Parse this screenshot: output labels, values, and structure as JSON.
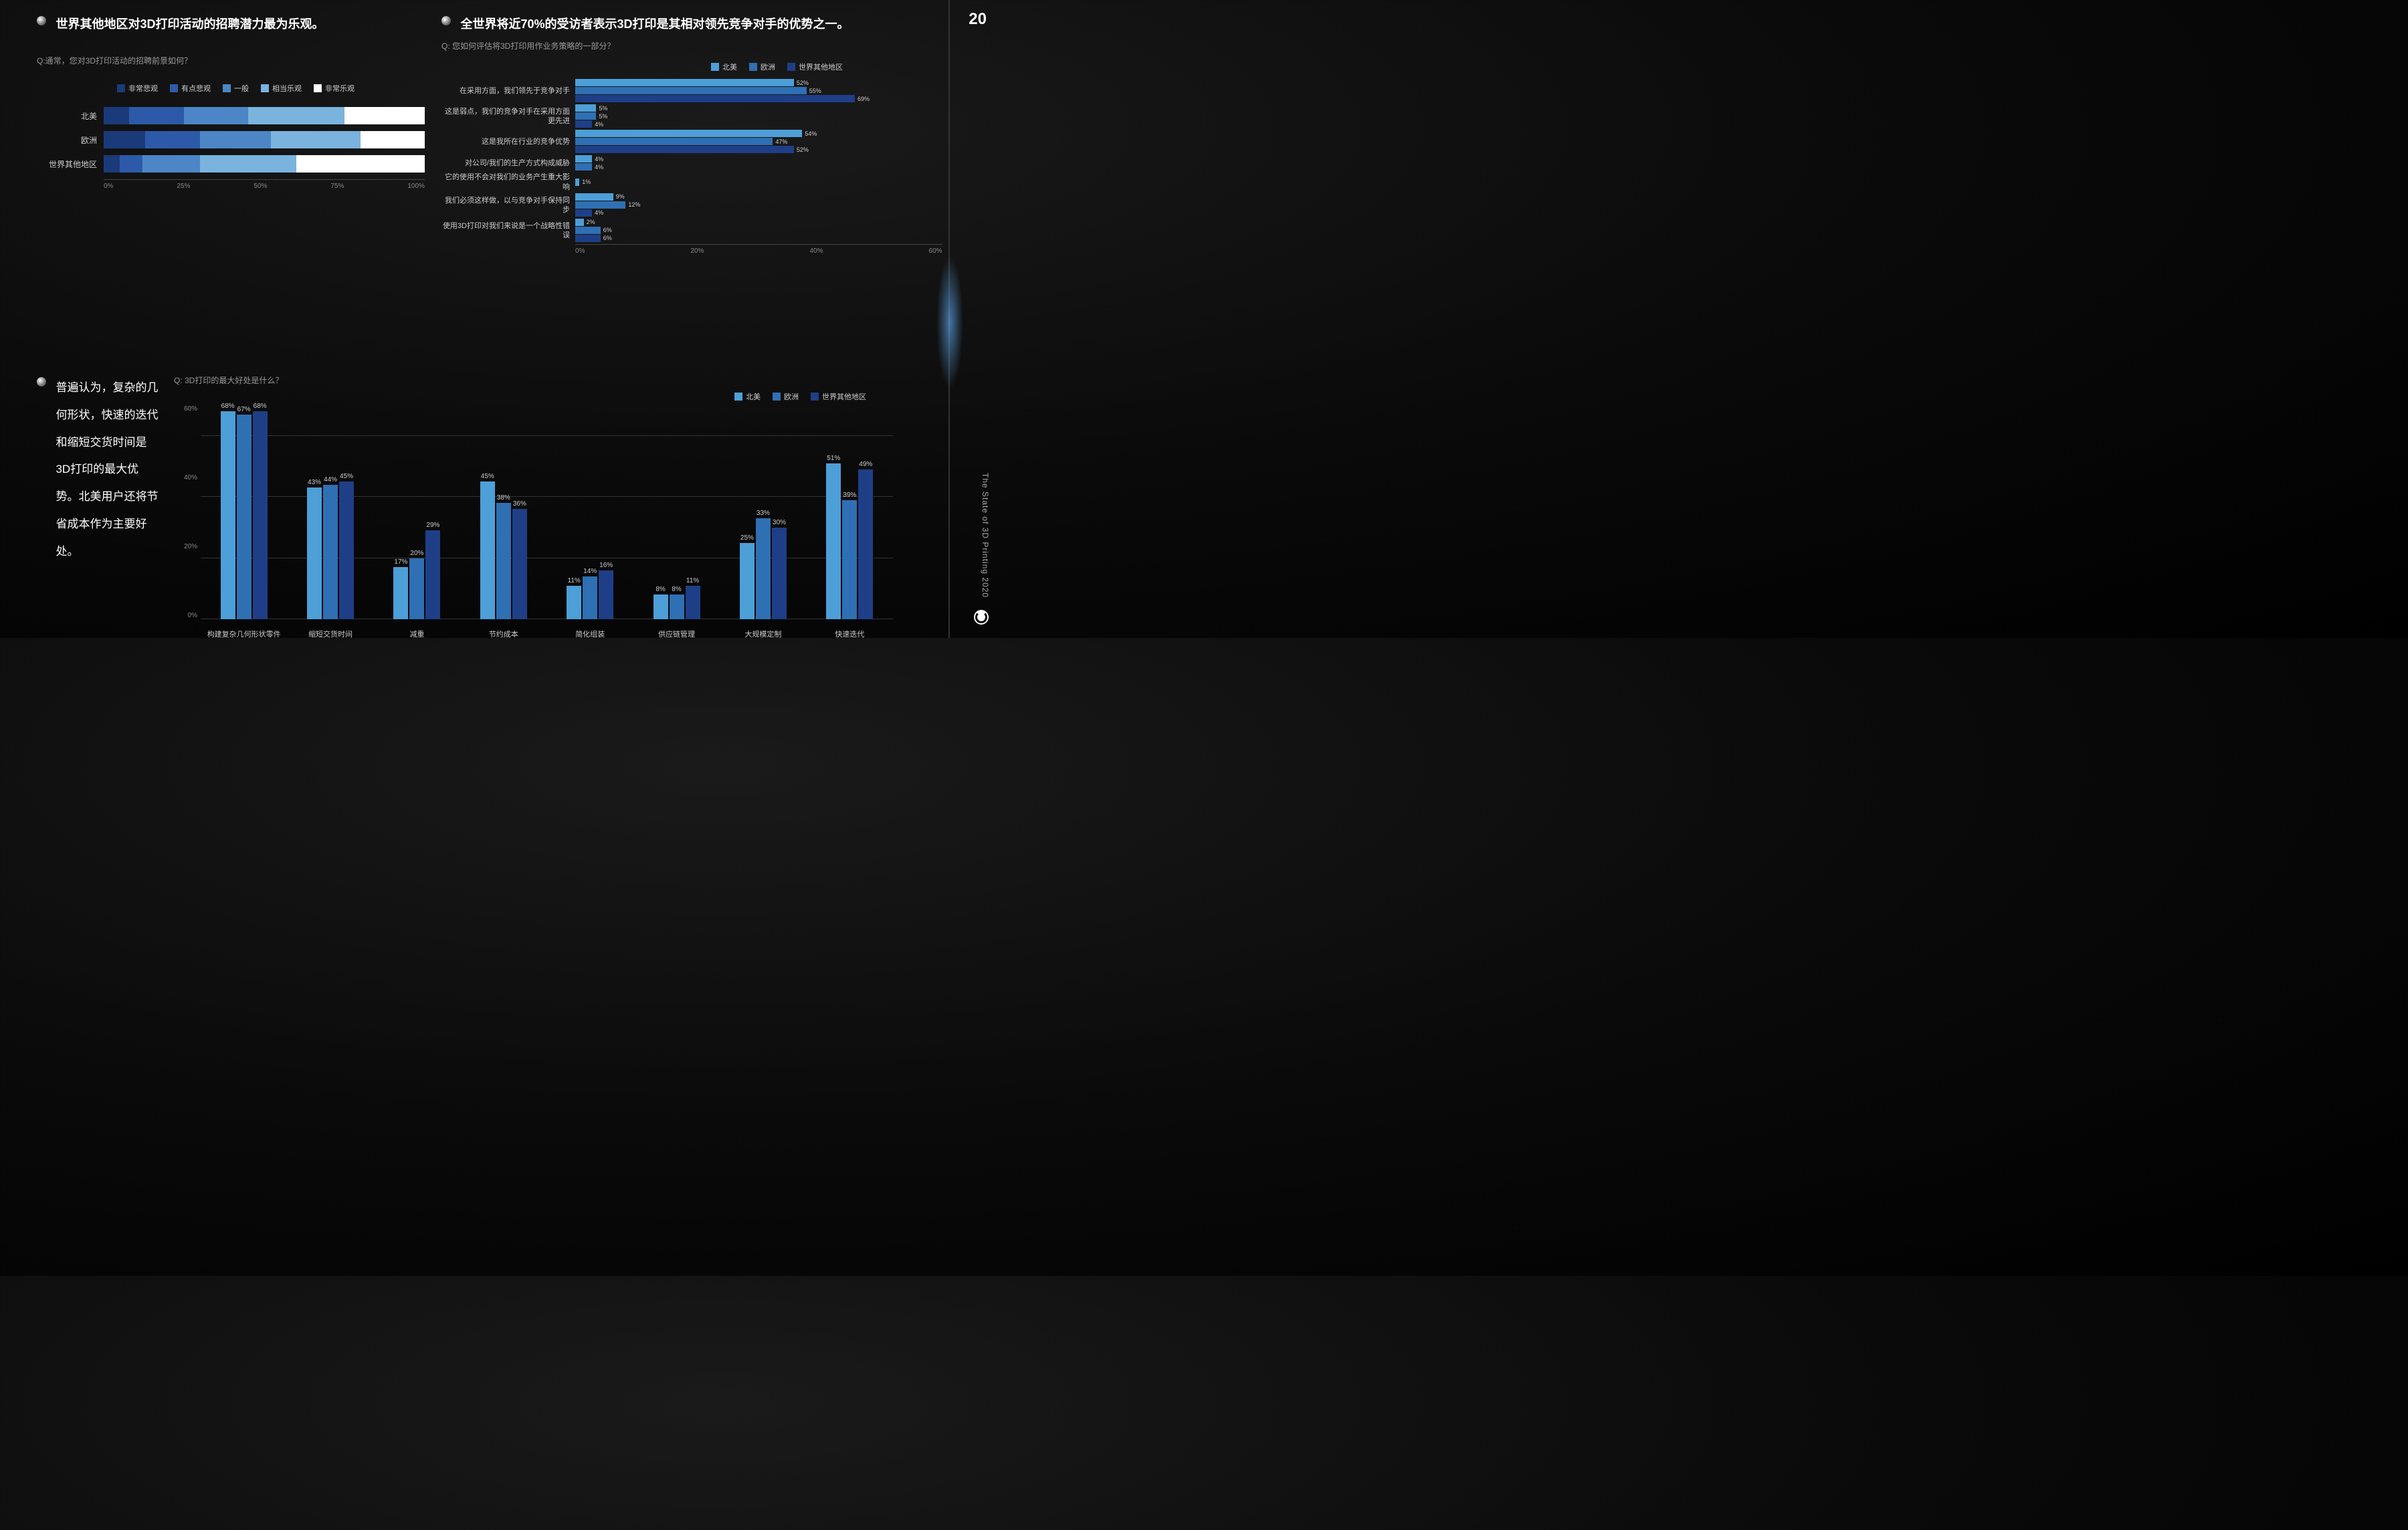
{
  "page_number": "20",
  "side_text": "The State of 3D Printing 2020",
  "colors": {
    "na": "#4d9fd8",
    "eu": "#2f6fb3",
    "row": "#1e3f87",
    "stacked": [
      "#1b3a7a",
      "#2d5aa8",
      "#4d86c6",
      "#7ab3de",
      "#ffffff"
    ]
  },
  "section1": {
    "headline": "世界其他地区对3D打印活动的招聘潜力最为乐观。",
    "question": "Q:通常，您对3D打印活动的招聘前景如何？",
    "legend": [
      "非常悲观",
      "有点悲观",
      "一般",
      "相当乐观",
      "非常乐观"
    ],
    "categories": [
      "北美",
      "欧洲",
      "世界其他地区"
    ],
    "data": [
      [
        8,
        17,
        20,
        30,
        25
      ],
      [
        13,
        17,
        22,
        28,
        20
      ],
      [
        5,
        7,
        18,
        30,
        40
      ]
    ],
    "xticks": [
      "0%",
      "25%",
      "50%",
      "75%",
      "100%"
    ]
  },
  "section2": {
    "headline": "全世界将近70%的受访者表示3D打印是其相对领先竞争对手的优势之一。",
    "question": "Q: 您如何评估将3D打印用作业务策略的一部分？",
    "legend": [
      "北美",
      "欧洲",
      "世界其他地区"
    ],
    "categories": [
      "在采用方面，我们领先于竞争对手",
      "这是弱点，我们的竞争对手在采用方面更先进",
      "这是我所在行业的竞争优势",
      "对公司/我们的生产方式构成威胁",
      "它的使用不会对我们的业务产生重大影响",
      "我们必须这样做，以与竞争对手保持同步",
      "使用3D打印对我们来说是一个战略性错误"
    ],
    "data": [
      [
        52,
        55,
        69
      ],
      [
        5,
        5,
        4
      ],
      [
        54,
        47,
        52
      ],
      [
        4,
        4,
        null
      ],
      [
        1,
        null,
        null
      ],
      [
        9,
        12,
        4
      ],
      [
        2,
        6,
        6
      ]
    ],
    "xmax": 70,
    "xticks": [
      "0%",
      "20%",
      "40%",
      "60%"
    ]
  },
  "section3": {
    "body": "普遍认为，复杂的几何形状，快速的迭代和缩短交货时间是3D打印的最大优势。北美用户还将节省成本作为主要好处。",
    "question": "Q: 3D打印的最大好处是什么？",
    "legend": [
      "北美",
      "欧洲",
      "世界其他地区"
    ],
    "categories": [
      "构建复杂几何形状零件",
      "缩短交货时间",
      "减重",
      "节约成本",
      "简化组装",
      "供应链管理",
      "大规模定制",
      "快速迭代"
    ],
    "data": [
      [
        68,
        67,
        68
      ],
      [
        43,
        44,
        45
      ],
      [
        17,
        20,
        29
      ],
      [
        45,
        38,
        36
      ],
      [
        11,
        14,
        16
      ],
      [
        8,
        8,
        11
      ],
      [
        25,
        33,
        30
      ],
      [
        51,
        39,
        49
      ]
    ],
    "ymax": 70,
    "yticks": [
      "60%",
      "40%",
      "20%",
      "0%"
    ]
  }
}
